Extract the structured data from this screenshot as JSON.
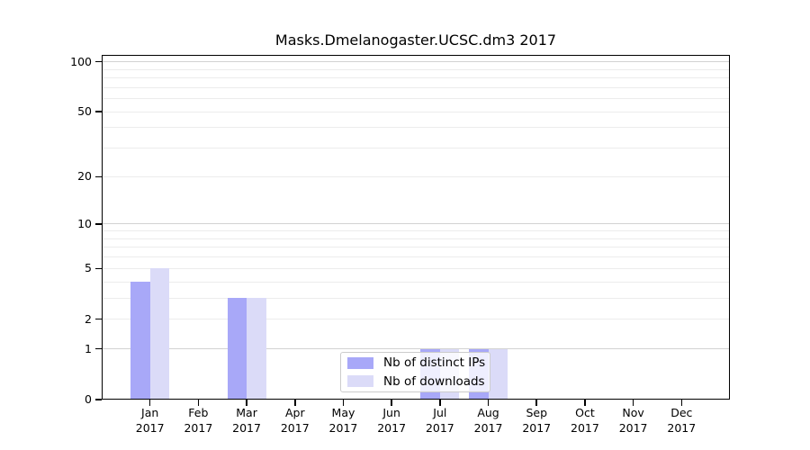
{
  "chart_data": {
    "type": "bar",
    "title": "Masks.Dmelanogaster.UCSC.dm3 2017",
    "categories": [
      "Jan 2017",
      "Feb 2017",
      "Mar 2017",
      "Apr 2017",
      "May 2017",
      "Jun 2017",
      "Jul 2017",
      "Aug 2017",
      "Sep 2017",
      "Oct 2017",
      "Nov 2017",
      "Dec 2017"
    ],
    "series": [
      {
        "name": "Nb of distinct IPs",
        "color": "#a8a8f8",
        "values": [
          4,
          0,
          3,
          0,
          0,
          0,
          1,
          1,
          0,
          0,
          0,
          0
        ]
      },
      {
        "name": "Nb of downloads",
        "color": "#dbdbf8",
        "values": [
          5,
          0,
          3,
          0,
          0,
          0,
          1,
          1,
          0,
          0,
          0,
          0
        ]
      }
    ],
    "xlabel": "",
    "ylabel": "",
    "yscale": "log1p",
    "ylim": [
      0,
      110
    ],
    "yticks": [
      0,
      1,
      2,
      5,
      10,
      20,
      50,
      100
    ],
    "grid": "horizontal major and minor gridlines, log spacing",
    "legend": {
      "position": "lower center",
      "labels": [
        "Nb of distinct IPs",
        "Nb of downloads"
      ]
    }
  },
  "style": {
    "grid_major_color": "#d2d2d2",
    "grid_minor_color": "#ececec",
    "axis_color": "#000000",
    "legend_border_color": "#cccccc",
    "legend_bg": "rgba(255,255,255,0.8)",
    "background": "#ffffff"
  }
}
